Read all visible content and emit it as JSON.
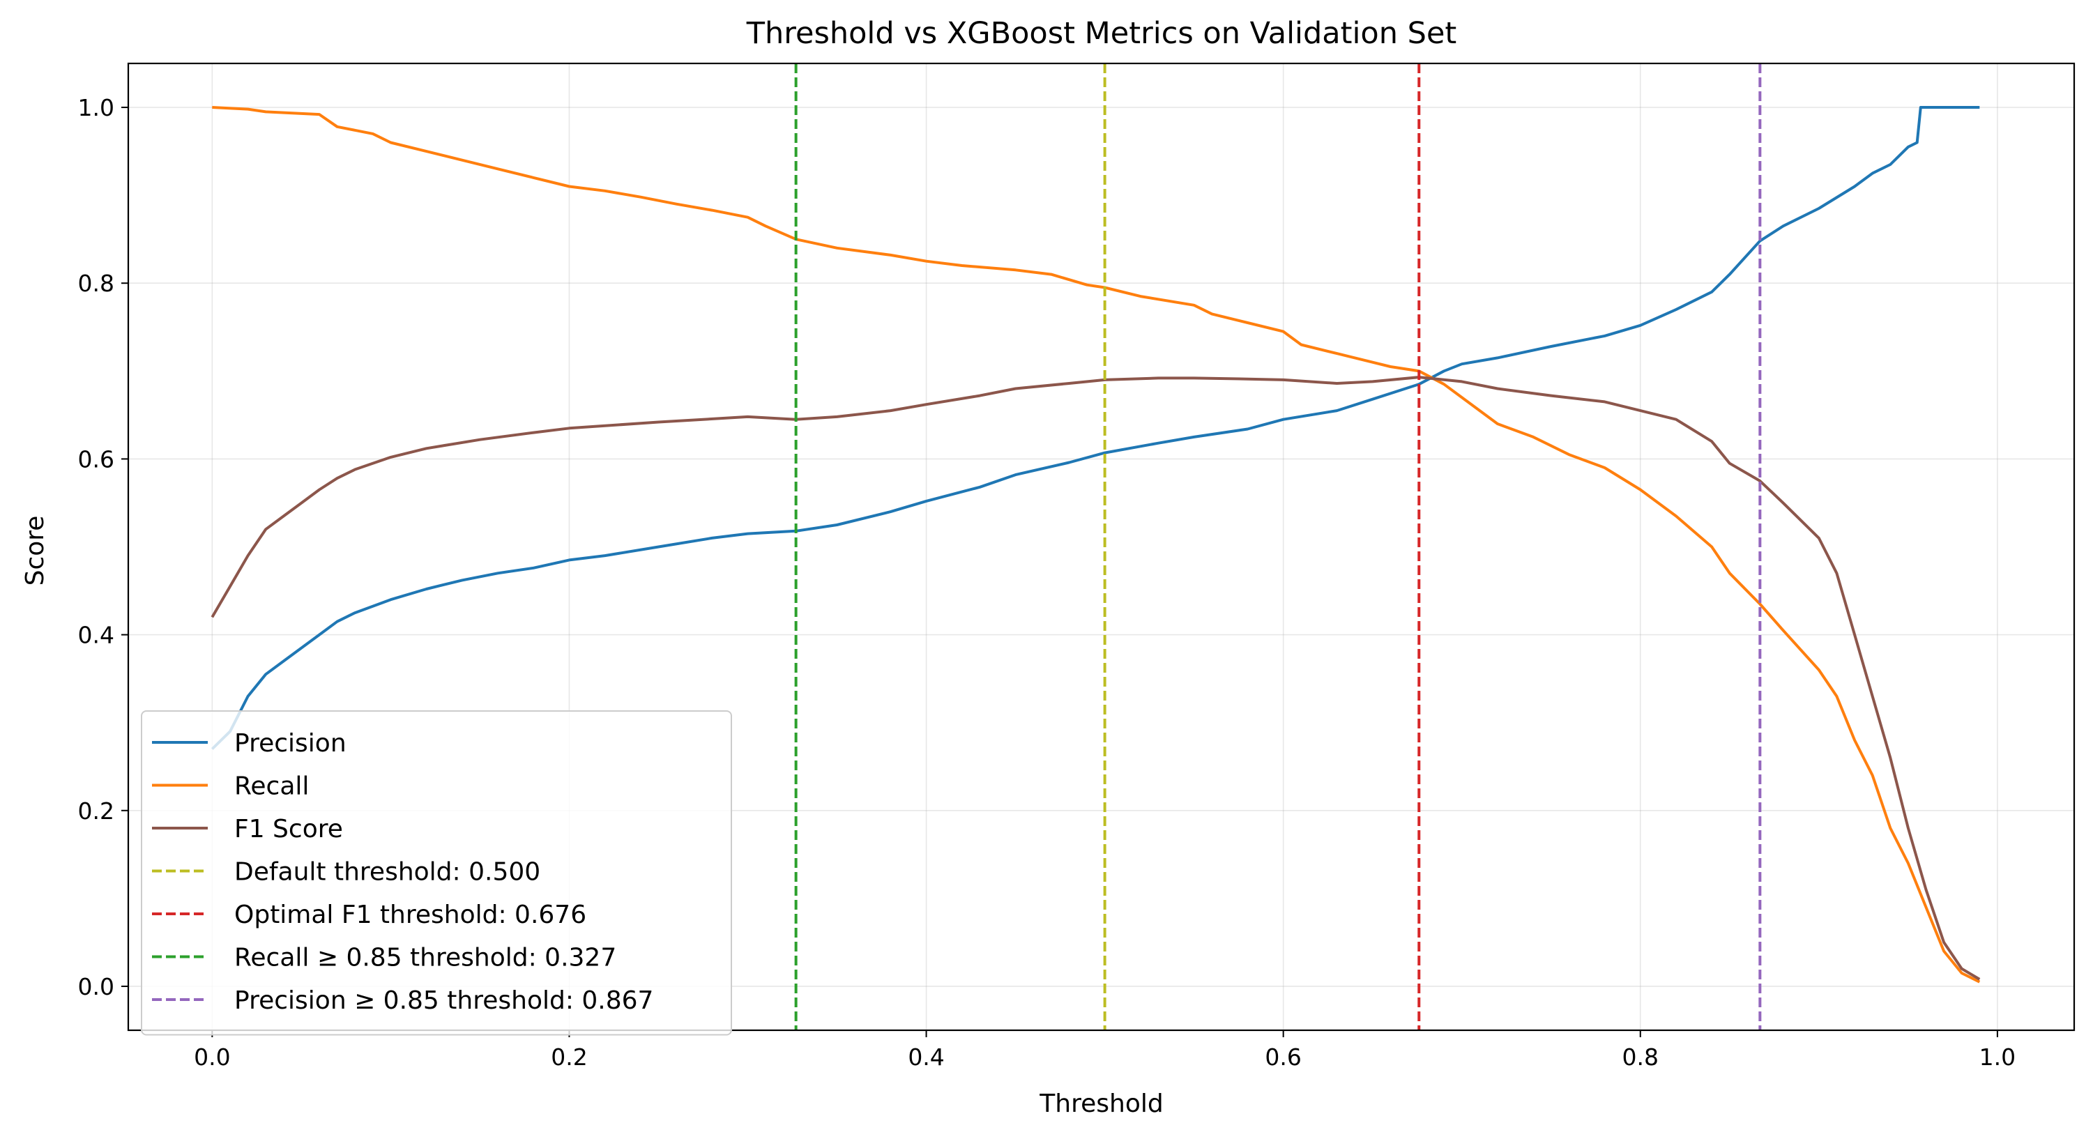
{
  "chart_data": {
    "type": "line",
    "title": "Threshold vs XGBoost Metrics on Validation Set",
    "xlabel": "Threshold",
    "ylabel": "Score",
    "xlim": [
      -0.047,
      1.043
    ],
    "ylim": [
      -0.05,
      1.05
    ],
    "xticks": [
      "0.0",
      "0.2",
      "0.4",
      "0.6",
      "0.8",
      "1.0"
    ],
    "yticks": [
      "0.0",
      "0.2",
      "0.4",
      "0.6",
      "0.8",
      "1.0"
    ],
    "grid": true,
    "legend_position": "lower-left",
    "series": [
      {
        "name": "Precision",
        "color": "#1f77b4",
        "style": "solid",
        "points": [
          [
            0.0,
            0.27
          ],
          [
            0.01,
            0.29
          ],
          [
            0.02,
            0.33
          ],
          [
            0.03,
            0.355
          ],
          [
            0.04,
            0.37
          ],
          [
            0.05,
            0.385
          ],
          [
            0.06,
            0.4
          ],
          [
            0.07,
            0.415
          ],
          [
            0.08,
            0.425
          ],
          [
            0.1,
            0.44
          ],
          [
            0.12,
            0.452
          ],
          [
            0.14,
            0.462
          ],
          [
            0.16,
            0.47
          ],
          [
            0.18,
            0.476
          ],
          [
            0.2,
            0.485
          ],
          [
            0.22,
            0.49
          ],
          [
            0.25,
            0.5
          ],
          [
            0.28,
            0.51
          ],
          [
            0.3,
            0.515
          ],
          [
            0.327,
            0.518
          ],
          [
            0.35,
            0.525
          ],
          [
            0.38,
            0.54
          ],
          [
            0.4,
            0.552
          ],
          [
            0.43,
            0.568
          ],
          [
            0.45,
            0.582
          ],
          [
            0.48,
            0.596
          ],
          [
            0.5,
            0.607
          ],
          [
            0.53,
            0.618
          ],
          [
            0.55,
            0.625
          ],
          [
            0.58,
            0.634
          ],
          [
            0.6,
            0.645
          ],
          [
            0.63,
            0.655
          ],
          [
            0.65,
            0.668
          ],
          [
            0.676,
            0.685
          ],
          [
            0.69,
            0.7
          ],
          [
            0.7,
            0.708
          ],
          [
            0.72,
            0.715
          ],
          [
            0.75,
            0.728
          ],
          [
            0.78,
            0.74
          ],
          [
            0.8,
            0.752
          ],
          [
            0.82,
            0.77
          ],
          [
            0.84,
            0.79
          ],
          [
            0.85,
            0.81
          ],
          [
            0.867,
            0.848
          ],
          [
            0.88,
            0.865
          ],
          [
            0.9,
            0.885
          ],
          [
            0.92,
            0.91
          ],
          [
            0.93,
            0.925
          ],
          [
            0.94,
            0.935
          ],
          [
            0.95,
            0.955
          ],
          [
            0.955,
            0.96
          ],
          [
            0.957,
            1.0
          ],
          [
            0.97,
            1.0
          ],
          [
            0.99,
            1.0
          ]
        ]
      },
      {
        "name": "Recall",
        "color": "#ff7f0e",
        "style": "solid",
        "points": [
          [
            0.0,
            1.0
          ],
          [
            0.02,
            0.998
          ],
          [
            0.03,
            0.995
          ],
          [
            0.06,
            0.992
          ],
          [
            0.07,
            0.978
          ],
          [
            0.09,
            0.97
          ],
          [
            0.1,
            0.96
          ],
          [
            0.12,
            0.95
          ],
          [
            0.14,
            0.94
          ],
          [
            0.16,
            0.93
          ],
          [
            0.18,
            0.92
          ],
          [
            0.2,
            0.91
          ],
          [
            0.22,
            0.905
          ],
          [
            0.24,
            0.898
          ],
          [
            0.26,
            0.89
          ],
          [
            0.28,
            0.883
          ],
          [
            0.3,
            0.875
          ],
          [
            0.31,
            0.865
          ],
          [
            0.327,
            0.85
          ],
          [
            0.35,
            0.84
          ],
          [
            0.38,
            0.832
          ],
          [
            0.4,
            0.825
          ],
          [
            0.42,
            0.82
          ],
          [
            0.45,
            0.815
          ],
          [
            0.47,
            0.81
          ],
          [
            0.49,
            0.798
          ],
          [
            0.5,
            0.795
          ],
          [
            0.52,
            0.785
          ],
          [
            0.55,
            0.775
          ],
          [
            0.56,
            0.765
          ],
          [
            0.58,
            0.755
          ],
          [
            0.6,
            0.745
          ],
          [
            0.61,
            0.73
          ],
          [
            0.63,
            0.72
          ],
          [
            0.65,
            0.71
          ],
          [
            0.66,
            0.705
          ],
          [
            0.676,
            0.7
          ],
          [
            0.69,
            0.685
          ],
          [
            0.7,
            0.67
          ],
          [
            0.72,
            0.64
          ],
          [
            0.74,
            0.625
          ],
          [
            0.76,
            0.605
          ],
          [
            0.78,
            0.59
          ],
          [
            0.8,
            0.565
          ],
          [
            0.82,
            0.535
          ],
          [
            0.84,
            0.5
          ],
          [
            0.85,
            0.47
          ],
          [
            0.867,
            0.435
          ],
          [
            0.88,
            0.405
          ],
          [
            0.9,
            0.36
          ],
          [
            0.91,
            0.33
          ],
          [
            0.92,
            0.28
          ],
          [
            0.93,
            0.24
          ],
          [
            0.94,
            0.18
          ],
          [
            0.95,
            0.14
          ],
          [
            0.96,
            0.09
          ],
          [
            0.97,
            0.04
          ],
          [
            0.98,
            0.015
          ],
          [
            0.99,
            0.005
          ]
        ]
      },
      {
        "name": "F1 Score",
        "color": "#8c564b",
        "style": "solid",
        "points": [
          [
            0.0,
            0.42
          ],
          [
            0.01,
            0.455
          ],
          [
            0.02,
            0.49
          ],
          [
            0.03,
            0.52
          ],
          [
            0.04,
            0.535
          ],
          [
            0.05,
            0.55
          ],
          [
            0.06,
            0.565
          ],
          [
            0.07,
            0.578
          ],
          [
            0.08,
            0.588
          ],
          [
            0.1,
            0.602
          ],
          [
            0.12,
            0.612
          ],
          [
            0.15,
            0.622
          ],
          [
            0.18,
            0.63
          ],
          [
            0.2,
            0.635
          ],
          [
            0.25,
            0.642
          ],
          [
            0.3,
            0.648
          ],
          [
            0.327,
            0.645
          ],
          [
            0.35,
            0.648
          ],
          [
            0.38,
            0.655
          ],
          [
            0.4,
            0.662
          ],
          [
            0.43,
            0.672
          ],
          [
            0.45,
            0.68
          ],
          [
            0.48,
            0.686
          ],
          [
            0.5,
            0.69
          ],
          [
            0.53,
            0.692
          ],
          [
            0.55,
            0.692
          ],
          [
            0.58,
            0.691
          ],
          [
            0.6,
            0.69
          ],
          [
            0.63,
            0.686
          ],
          [
            0.65,
            0.688
          ],
          [
            0.676,
            0.693
          ],
          [
            0.7,
            0.688
          ],
          [
            0.72,
            0.68
          ],
          [
            0.75,
            0.672
          ],
          [
            0.78,
            0.665
          ],
          [
            0.8,
            0.655
          ],
          [
            0.82,
            0.645
          ],
          [
            0.84,
            0.62
          ],
          [
            0.85,
            0.595
          ],
          [
            0.867,
            0.575
          ],
          [
            0.88,
            0.55
          ],
          [
            0.9,
            0.51
          ],
          [
            0.91,
            0.47
          ],
          [
            0.92,
            0.4
          ],
          [
            0.93,
            0.33
          ],
          [
            0.94,
            0.26
          ],
          [
            0.95,
            0.18
          ],
          [
            0.96,
            0.11
          ],
          [
            0.97,
            0.05
          ],
          [
            0.98,
            0.02
          ],
          [
            0.99,
            0.008
          ]
        ]
      }
    ],
    "vlines": [
      {
        "name": "Default threshold: 0.500",
        "x": 0.5,
        "color": "#bcbd22"
      },
      {
        "name": "Optimal F1 threshold: 0.676",
        "x": 0.676,
        "color": "#d62728"
      },
      {
        "name": "Recall ≥ 0.85 threshold: 0.327",
        "x": 0.327,
        "color": "#2ca02c"
      },
      {
        "name": "Precision ≥ 0.85 threshold: 0.867",
        "x": 0.867,
        "color": "#9467bd"
      }
    ]
  }
}
